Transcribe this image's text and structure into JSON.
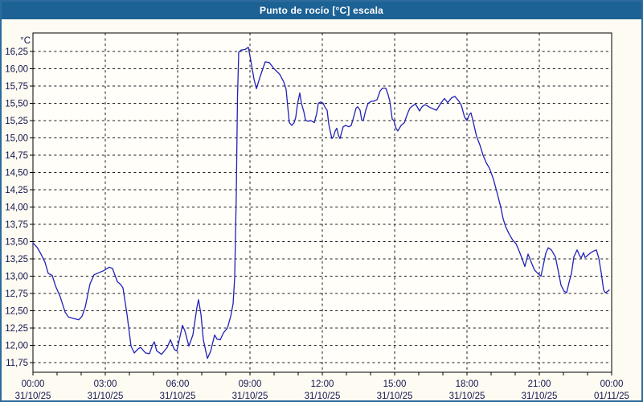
{
  "window": {
    "title": "Punto de rocío [°C] escala"
  },
  "colors": {
    "titlebar": "#1d6295",
    "frame": "#2d6b9d",
    "background": "#fdfbf2",
    "plot_background": "#fffef9",
    "grid": "#1a1a1a",
    "axis": "#000000",
    "label_text": "#14144d",
    "line": "#2121b8"
  },
  "chart_data": {
    "type": "line",
    "title": "Punto de rocío [°C] escala",
    "unit_label": "°C",
    "xlabel": "",
    "ylabel": "",
    "legend": "none",
    "grid": "dashed",
    "ylim": [
      11.61,
      16.52
    ],
    "x_range_hours": [
      0,
      24
    ],
    "x_minor_tick_hours": 1,
    "y_ticks": [
      {
        "v": 16.25,
        "label": "16,25"
      },
      {
        "v": 16.0,
        "label": "16,00"
      },
      {
        "v": 15.75,
        "label": "15,75"
      },
      {
        "v": 15.5,
        "label": "15,50"
      },
      {
        "v": 15.25,
        "label": "15,25"
      },
      {
        "v": 15.0,
        "label": "15,00"
      },
      {
        "v": 14.75,
        "label": "14,75"
      },
      {
        "v": 14.5,
        "label": "14,50"
      },
      {
        "v": 14.25,
        "label": "14,25"
      },
      {
        "v": 14.0,
        "label": "14,00"
      },
      {
        "v": 13.75,
        "label": "13,75"
      },
      {
        "v": 13.5,
        "label": "13,50"
      },
      {
        "v": 13.25,
        "label": "13,25"
      },
      {
        "v": 13.0,
        "label": "13,00"
      },
      {
        "v": 12.75,
        "label": "12,75"
      },
      {
        "v": 12.5,
        "label": "12,50"
      },
      {
        "v": 12.25,
        "label": "12,25"
      },
      {
        "v": 12.0,
        "label": "12,00"
      },
      {
        "v": 11.75,
        "label": "11,75"
      }
    ],
    "x_ticks": [
      {
        "h": 0,
        "time": "00:00",
        "date": "31/10/25"
      },
      {
        "h": 3,
        "time": "03:00",
        "date": "31/10/25"
      },
      {
        "h": 6,
        "time": "06:00",
        "date": "31/10/25"
      },
      {
        "h": 9,
        "time": "09:00",
        "date": "31/10/25"
      },
      {
        "h": 12,
        "time": "12:00",
        "date": "31/10/25"
      },
      {
        "h": 15,
        "time": "15:00",
        "date": "31/10/25"
      },
      {
        "h": 18,
        "time": "18:00",
        "date": "31/10/25"
      },
      {
        "h": 21,
        "time": "21:00",
        "date": "31/10/25"
      },
      {
        "h": 24,
        "time": "00:00",
        "date": "01/11/25"
      }
    ],
    "series": [
      {
        "name": "Punto de rocío",
        "x_unit": "minutes_from_00:00_31/10/25",
        "points": [
          [
            0,
            13.48
          ],
          [
            10,
            13.42
          ],
          [
            20,
            13.32
          ],
          [
            30,
            13.2
          ],
          [
            38,
            13.04
          ],
          [
            48,
            13.01
          ],
          [
            56,
            12.86
          ],
          [
            68,
            12.7
          ],
          [
            80,
            12.48
          ],
          [
            88,
            12.41
          ],
          [
            100,
            12.39
          ],
          [
            114,
            12.37
          ],
          [
            122,
            12.42
          ],
          [
            130,
            12.55
          ],
          [
            142,
            12.89
          ],
          [
            152,
            13.02
          ],
          [
            164,
            13.05
          ],
          [
            176,
            13.08
          ],
          [
            190,
            13.13
          ],
          [
            198,
            13.11
          ],
          [
            210,
            12.92
          ],
          [
            218,
            12.88
          ],
          [
            224,
            12.83
          ],
          [
            234,
            12.45
          ],
          [
            244,
            11.99
          ],
          [
            252,
            11.89
          ],
          [
            262,
            11.95
          ],
          [
            268,
            11.97
          ],
          [
            280,
            11.89
          ],
          [
            290,
            11.88
          ],
          [
            298,
            12.01
          ],
          [
            302,
            12.05
          ],
          [
            308,
            11.92
          ],
          [
            320,
            11.87
          ],
          [
            334,
            11.97
          ],
          [
            342,
            12.08
          ],
          [
            352,
            11.94
          ],
          [
            358,
            11.92
          ],
          [
            368,
            12.18
          ],
          [
            372,
            12.29
          ],
          [
            378,
            12.21
          ],
          [
            388,
            11.99
          ],
          [
            398,
            12.15
          ],
          [
            408,
            12.55
          ],
          [
            412,
            12.66
          ],
          [
            418,
            12.45
          ],
          [
            424,
            12.08
          ],
          [
            434,
            11.81
          ],
          [
            442,
            11.91
          ],
          [
            452,
            12.15
          ],
          [
            458,
            12.09
          ],
          [
            466,
            12.08
          ],
          [
            474,
            12.18
          ],
          [
            484,
            12.25
          ],
          [
            492,
            12.42
          ],
          [
            498,
            12.6
          ],
          [
            502,
            12.98
          ],
          [
            506,
            14.2
          ],
          [
            509,
            15.6
          ],
          [
            512,
            16.24
          ],
          [
            518,
            16.27
          ],
          [
            528,
            16.28
          ],
          [
            536,
            16.31
          ],
          [
            542,
            16.12
          ],
          [
            550,
            15.85
          ],
          [
            556,
            15.71
          ],
          [
            566,
            15.9
          ],
          [
            578,
            16.1
          ],
          [
            588,
            16.09
          ],
          [
            600,
            16.0
          ],
          [
            614,
            15.92
          ],
          [
            624,
            15.81
          ],
          [
            630,
            15.7
          ],
          [
            634,
            15.45
          ],
          [
            638,
            15.22
          ],
          [
            644,
            15.18
          ],
          [
            650,
            15.22
          ],
          [
            654,
            15.3
          ],
          [
            658,
            15.48
          ],
          [
            664,
            15.65
          ],
          [
            668,
            15.5
          ],
          [
            674,
            15.38
          ],
          [
            678,
            15.26
          ],
          [
            684,
            15.24
          ],
          [
            692,
            15.25
          ],
          [
            700,
            15.22
          ],
          [
            706,
            15.35
          ],
          [
            710,
            15.5
          ],
          [
            716,
            15.52
          ],
          [
            722,
            15.5
          ],
          [
            728,
            15.43
          ],
          [
            732,
            15.4
          ],
          [
            736,
            15.2
          ],
          [
            740,
            15.09
          ],
          [
            744,
            14.99
          ],
          [
            748,
            15.02
          ],
          [
            752,
            15.1
          ],
          [
            756,
            15.14
          ],
          [
            760,
            15.04
          ],
          [
            764,
            14.99
          ],
          [
            768,
            15.08
          ],
          [
            772,
            15.16
          ],
          [
            778,
            15.18
          ],
          [
            786,
            15.16
          ],
          [
            792,
            15.18
          ],
          [
            798,
            15.3
          ],
          [
            804,
            15.43
          ],
          [
            808,
            15.45
          ],
          [
            814,
            15.4
          ],
          [
            818,
            15.26
          ],
          [
            822,
            15.25
          ],
          [
            828,
            15.4
          ],
          [
            834,
            15.5
          ],
          [
            842,
            15.53
          ],
          [
            848,
            15.53
          ],
          [
            856,
            15.55
          ],
          [
            864,
            15.68
          ],
          [
            870,
            15.72
          ],
          [
            878,
            15.72
          ],
          [
            884,
            15.62
          ],
          [
            888,
            15.53
          ],
          [
            894,
            15.27
          ],
          [
            898,
            15.25
          ],
          [
            904,
            15.13
          ],
          [
            908,
            15.1
          ],
          [
            916,
            15.18
          ],
          [
            924,
            15.22
          ],
          [
            932,
            15.35
          ],
          [
            938,
            15.43
          ],
          [
            944,
            15.46
          ],
          [
            952,
            15.49
          ],
          [
            958,
            15.43
          ],
          [
            962,
            15.39
          ],
          [
            968,
            15.45
          ],
          [
            976,
            15.48
          ],
          [
            988,
            15.44
          ],
          [
            1004,
            15.4
          ],
          [
            1016,
            15.51
          ],
          [
            1024,
            15.57
          ],
          [
            1032,
            15.51
          ],
          [
            1042,
            15.58
          ],
          [
            1050,
            15.6
          ],
          [
            1060,
            15.53
          ],
          [
            1066,
            15.47
          ],
          [
            1074,
            15.3
          ],
          [
            1080,
            15.25
          ],
          [
            1086,
            15.34
          ],
          [
            1090,
            15.36
          ],
          [
            1096,
            15.22
          ],
          [
            1104,
            15.02
          ],
          [
            1112,
            14.9
          ],
          [
            1120,
            14.75
          ],
          [
            1128,
            14.64
          ],
          [
            1136,
            14.56
          ],
          [
            1146,
            14.4
          ],
          [
            1156,
            14.18
          ],
          [
            1164,
            14.0
          ],
          [
            1170,
            13.83
          ],
          [
            1176,
            13.72
          ],
          [
            1184,
            13.62
          ],
          [
            1194,
            13.52
          ],
          [
            1202,
            13.47
          ],
          [
            1210,
            13.36
          ],
          [
            1218,
            13.24
          ],
          [
            1224,
            13.14
          ],
          [
            1232,
            13.32
          ],
          [
            1240,
            13.2
          ],
          [
            1248,
            13.09
          ],
          [
            1258,
            13.03
          ],
          [
            1264,
            13.0
          ],
          [
            1270,
            13.16
          ],
          [
            1276,
            13.33
          ],
          [
            1282,
            13.41
          ],
          [
            1290,
            13.38
          ],
          [
            1300,
            13.28
          ],
          [
            1308,
            13.05
          ],
          [
            1314,
            12.87
          ],
          [
            1322,
            12.78
          ],
          [
            1328,
            12.76
          ],
          [
            1334,
            12.91
          ],
          [
            1340,
            13.04
          ],
          [
            1346,
            13.28
          ],
          [
            1354,
            13.38
          ],
          [
            1360,
            13.3
          ],
          [
            1364,
            13.26
          ],
          [
            1370,
            13.34
          ],
          [
            1374,
            13.27
          ],
          [
            1380,
            13.3
          ],
          [
            1386,
            13.33
          ],
          [
            1394,
            13.36
          ],
          [
            1402,
            13.38
          ],
          [
            1408,
            13.26
          ],
          [
            1414,
            13.05
          ],
          [
            1420,
            12.8
          ],
          [
            1424,
            12.76
          ],
          [
            1430,
            12.78
          ],
          [
            1434,
            12.8
          ]
        ]
      }
    ]
  }
}
